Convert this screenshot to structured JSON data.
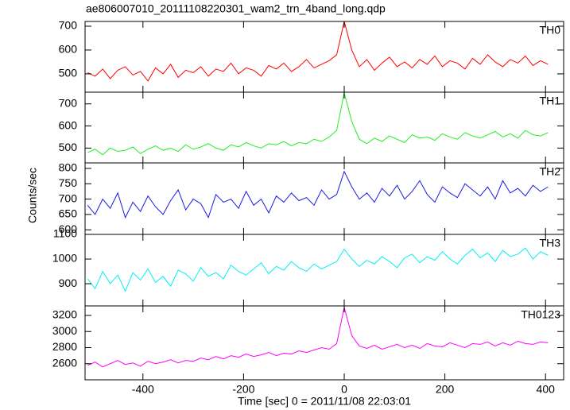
{
  "chart_data": [
    {
      "type": "line",
      "title": "ae806007010_20111108220301_wam2_trn_4band_long.qdp",
      "x": [
        -510,
        -495,
        -480,
        -465,
        -450,
        -435,
        -420,
        -405,
        -390,
        -375,
        -360,
        -345,
        -330,
        -315,
        -300,
        -285,
        -270,
        -255,
        -240,
        -225,
        -210,
        -195,
        -180,
        -165,
        -150,
        -135,
        -120,
        -105,
        -90,
        -75,
        -60,
        -45,
        -30,
        -15,
        0,
        15,
        30,
        45,
        60,
        75,
        90,
        105,
        120,
        135,
        150,
        165,
        180,
        195,
        210,
        225,
        240,
        255,
        270,
        285,
        300,
        315,
        330,
        345,
        360,
        375,
        390,
        405
      ],
      "series": [
        {
          "name": "TH0",
          "color": "#ff0000",
          "values": [
            505,
            490,
            520,
            480,
            515,
            530,
            495,
            510,
            470,
            525,
            500,
            540,
            485,
            515,
            505,
            530,
            490,
            520,
            510,
            545,
            500,
            525,
            515,
            490,
            535,
            520,
            545,
            510,
            530,
            560,
            525,
            540,
            555,
            580,
            720,
            600,
            530,
            560,
            515,
            545,
            570,
            530,
            550,
            525,
            560,
            540,
            575,
            530,
            555,
            545,
            520,
            565,
            540,
            580,
            550,
            530,
            560,
            545,
            575,
            535,
            555,
            540
          ]
        }
      ],
      "xlim": [
        -515,
        436
      ],
      "ylim": [
        423,
        720
      ],
      "yticks": [
        500,
        600,
        700
      ]
    },
    {
      "type": "line",
      "x": [
        -510,
        -495,
        -480,
        -465,
        -450,
        -435,
        -420,
        -405,
        -390,
        -375,
        -360,
        -345,
        -330,
        -315,
        -300,
        -285,
        -270,
        -255,
        -240,
        -225,
        -210,
        -195,
        -180,
        -165,
        -150,
        -135,
        -120,
        -105,
        -90,
        -75,
        -60,
        -45,
        -30,
        -15,
        0,
        15,
        30,
        45,
        60,
        75,
        90,
        105,
        120,
        135,
        150,
        165,
        180,
        195,
        210,
        225,
        240,
        255,
        270,
        285,
        300,
        315,
        330,
        345,
        360,
        375,
        390,
        405
      ],
      "series": [
        {
          "name": "TH1",
          "color": "#22ee22",
          "values": [
            480,
            495,
            470,
            500,
            485,
            490,
            505,
            475,
            495,
            510,
            490,
            500,
            485,
            515,
            495,
            505,
            520,
            500,
            490,
            515,
            505,
            525,
            510,
            500,
            520,
            515,
            530,
            510,
            525,
            520,
            540,
            530,
            550,
            580,
            750,
            620,
            540,
            520,
            545,
            530,
            555,
            540,
            525,
            560,
            545,
            550,
            535,
            565,
            550,
            540,
            570,
            555,
            545,
            560,
            575,
            550,
            565,
            545,
            580,
            560,
            555,
            570
          ]
        }
      ],
      "xlim": [
        -515,
        436
      ],
      "ylim": [
        433,
        753
      ],
      "yticks": [
        500,
        600,
        700
      ]
    },
    {
      "type": "line",
      "ylabel": "Counts/sec",
      "x": [
        -510,
        -495,
        -480,
        -465,
        -450,
        -435,
        -420,
        -405,
        -390,
        -375,
        -360,
        -345,
        -330,
        -315,
        -300,
        -285,
        -270,
        -255,
        -240,
        -225,
        -210,
        -195,
        -180,
        -165,
        -150,
        -135,
        -120,
        -105,
        -90,
        -75,
        -60,
        -45,
        -30,
        -15,
        0,
        15,
        30,
        45,
        60,
        75,
        90,
        105,
        120,
        135,
        150,
        165,
        180,
        195,
        210,
        225,
        240,
        255,
        270,
        285,
        300,
        315,
        330,
        345,
        360,
        375,
        390,
        405
      ],
      "series": [
        {
          "name": "TH2",
          "color": "#1a1ae6",
          "values": [
            680,
            650,
            700,
            670,
            720,
            640,
            690,
            660,
            710,
            675,
            650,
            695,
            730,
            665,
            700,
            685,
            640,
            715,
            690,
            700,
            670,
            725,
            680,
            700,
            655,
            710,
            690,
            720,
            695,
            705,
            680,
            730,
            700,
            715,
            790,
            740,
            700,
            720,
            690,
            735,
            710,
            745,
            700,
            725,
            760,
            715,
            690,
            740,
            720,
            705,
            750,
            730,
            710,
            740,
            700,
            760,
            720,
            735,
            710,
            745,
            725,
            740
          ]
        }
      ],
      "xlim": [
        -515,
        436
      ],
      "ylim": [
        585,
        818
      ],
      "yticks": [
        600,
        650,
        700,
        750,
        800
      ]
    },
    {
      "type": "line",
      "x": [
        -510,
        -495,
        -480,
        -465,
        -450,
        -435,
        -420,
        -405,
        -390,
        -375,
        -360,
        -345,
        -330,
        -315,
        -300,
        -285,
        -270,
        -255,
        -240,
        -225,
        -210,
        -195,
        -180,
        -165,
        -150,
        -135,
        -120,
        -105,
        -90,
        -75,
        -60,
        -45,
        -30,
        -15,
        0,
        15,
        30,
        45,
        60,
        75,
        90,
        105,
        120,
        135,
        150,
        165,
        180,
        195,
        210,
        225,
        240,
        255,
        270,
        285,
        300,
        315,
        330,
        345,
        360,
        375,
        390,
        405
      ],
      "series": [
        {
          "name": "TH3",
          "color": "#00f0f0",
          "values": [
            920,
            880,
            950,
            900,
            935,
            870,
            945,
            915,
            960,
            905,
            930,
            890,
            955,
            940,
            910,
            965,
            930,
            945,
            920,
            975,
            950,
            935,
            960,
            985,
            940,
            970,
            955,
            990,
            965,
            950,
            980,
            960,
            975,
            990,
            1040,
            1000,
            970,
            995,
            980,
            1010,
            990,
            965,
            1005,
            1020,
            985,
            1010,
            995,
            1030,
            1000,
            980,
            1015,
            1040,
            1005,
            1025,
            990,
            1035,
            1010,
            1020,
            1045,
            1000,
            1030,
            1015
          ]
        }
      ],
      "xlim": [
        -515,
        436
      ],
      "ylim": [
        810,
        1100
      ],
      "yticks": [
        900,
        1000,
        1100
      ]
    },
    {
      "type": "line",
      "xlabel": "Time [sec] 0 = 2011/11/08 22:03:01",
      "x": [
        -510,
        -495,
        -480,
        -465,
        -450,
        -435,
        -420,
        -405,
        -390,
        -375,
        -360,
        -345,
        -330,
        -315,
        -300,
        -285,
        -270,
        -255,
        -240,
        -225,
        -210,
        -195,
        -180,
        -165,
        -150,
        -135,
        -120,
        -105,
        -90,
        -75,
        -60,
        -45,
        -30,
        -15,
        0,
        15,
        30,
        45,
        60,
        75,
        90,
        105,
        120,
        135,
        150,
        165,
        180,
        195,
        210,
        225,
        240,
        255,
        270,
        285,
        300,
        315,
        330,
        345,
        360,
        375,
        390,
        405
      ],
      "series": [
        {
          "name": "TH0123",
          "color": "#ff00ff",
          "values": [
            2580,
            2620,
            2560,
            2600,
            2640,
            2590,
            2610,
            2570,
            2630,
            2600,
            2620,
            2650,
            2610,
            2640,
            2630,
            2670,
            2650,
            2690,
            2660,
            2700,
            2680,
            2720,
            2690,
            2710,
            2740,
            2700,
            2730,
            2720,
            2760,
            2740,
            2770,
            2800,
            2780,
            2850,
            3300,
            2950,
            2820,
            2790,
            2830,
            2780,
            2810,
            2840,
            2800,
            2830,
            2790,
            2850,
            2820,
            2810,
            2860,
            2830,
            2800,
            2850,
            2840,
            2870,
            2820,
            2860,
            2830,
            2880,
            2850,
            2840,
            2870,
            2860
          ]
        }
      ],
      "xlim": [
        -515,
        436
      ],
      "ylim": [
        2400,
        3318
      ],
      "yticks": [
        2600,
        2800,
        3000,
        3200
      ],
      "xticks": [
        -400,
        -200,
        0,
        200,
        400
      ]
    }
  ]
}
